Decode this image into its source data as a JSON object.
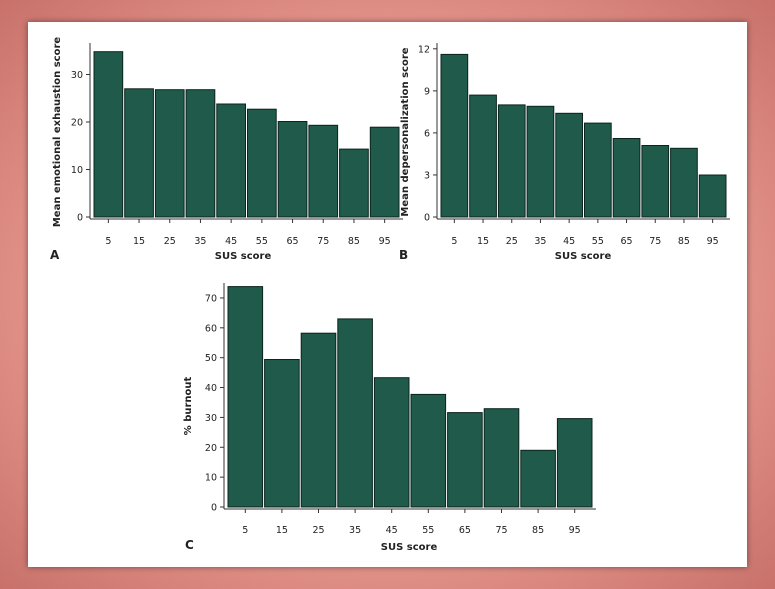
{
  "colors": {
    "bar": "#1f5a4b",
    "bar_edge": "#0b241d",
    "axis": "#333333"
  },
  "chart_data": [
    {
      "panel": "A",
      "type": "bar",
      "categories": [
        "5",
        "15",
        "25",
        "35",
        "45",
        "55",
        "65",
        "75",
        "85",
        "95"
      ],
      "values": [
        34.8,
        27.0,
        26.8,
        26.8,
        23.8,
        22.7,
        20.1,
        19.3,
        14.3,
        18.9
      ],
      "xlabel": "SUS score",
      "ylabel": "Mean emotional exhaustion score",
      "ylim": [
        0,
        36
      ],
      "yticks": [
        0,
        10,
        20,
        30
      ]
    },
    {
      "panel": "B",
      "type": "bar",
      "categories": [
        "5",
        "15",
        "25",
        "35",
        "45",
        "55",
        "65",
        "75",
        "85",
        "95"
      ],
      "values": [
        11.6,
        8.7,
        8.0,
        7.9,
        7.4,
        6.7,
        5.6,
        5.1,
        4.9,
        3.0
      ],
      "xlabel": "SUS score",
      "ylabel": "Mean depersonalization score",
      "ylim": [
        0,
        12.2
      ],
      "yticks": [
        0,
        3,
        6,
        9,
        12
      ]
    },
    {
      "panel": "C",
      "type": "bar",
      "categories": [
        "5",
        "15",
        "25",
        "35",
        "45",
        "55",
        "65",
        "75",
        "85",
        "95"
      ],
      "values": [
        73.8,
        49.4,
        58.2,
        63.0,
        43.3,
        37.7,
        31.6,
        32.9,
        19.0,
        29.6
      ],
      "xlabel": "SUS score",
      "ylabel": "% burnout",
      "ylim": [
        0,
        74
      ],
      "yticks": [
        0,
        10,
        20,
        30,
        40,
        50,
        60,
        70
      ]
    }
  ]
}
